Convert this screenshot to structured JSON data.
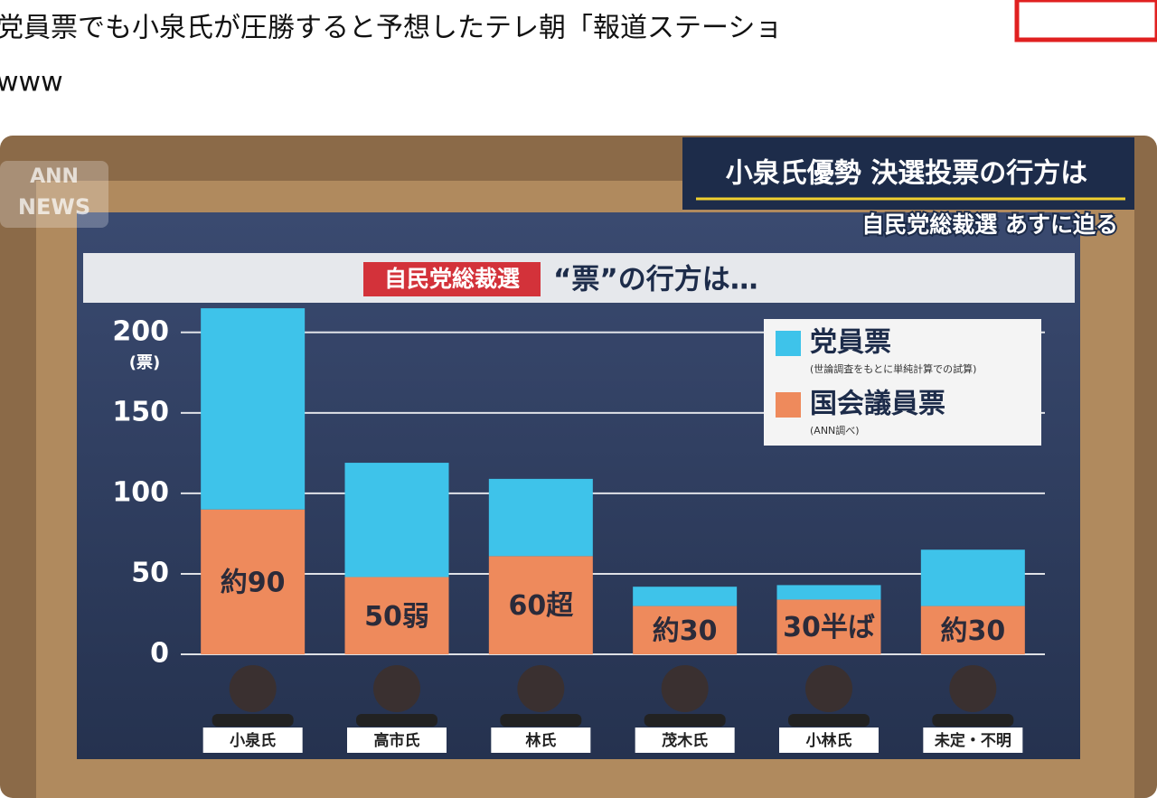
{
  "headline": {
    "line1": "党員票でも小泉氏が圧勝すると予想したテレ朝「報道ステーショ",
    "line2": "www"
  },
  "broadcast": {
    "logo_line1": "ANN",
    "logo_line2": "NEWS",
    "caption": "小泉氏優勢 決選投票の行方は",
    "subcaption": "自民党総裁選 あすに迫る"
  },
  "chart_data": {
    "type": "stacked_bar",
    "tag": "自民党総裁選",
    "title": "“票”の行方は…",
    "y_unit": "(票)",
    "categories": [
      "小泉氏",
      "高市氏",
      "林氏",
      "茂木氏",
      "小林氏",
      "未定・不明"
    ],
    "series": [
      {
        "name": "国会議員票",
        "note": "(ANN調べ)",
        "color": "#ee8a5c",
        "values": [
          90,
          48,
          61,
          30,
          34,
          30
        ],
        "value_labels": [
          "約90",
          "50弱",
          "60超",
          "約30",
          "30半ば",
          "約30"
        ]
      },
      {
        "name": "党員票",
        "note": "(世論調査をもとに単純計算での試算)",
        "color": "#3ec3ea",
        "values": [
          125,
          71,
          48,
          12,
          9,
          35
        ]
      }
    ],
    "ylim": [
      0,
      210
    ],
    "yticks": [
      0,
      50,
      100,
      150,
      200
    ],
    "grid": true,
    "legend": "top-right"
  }
}
